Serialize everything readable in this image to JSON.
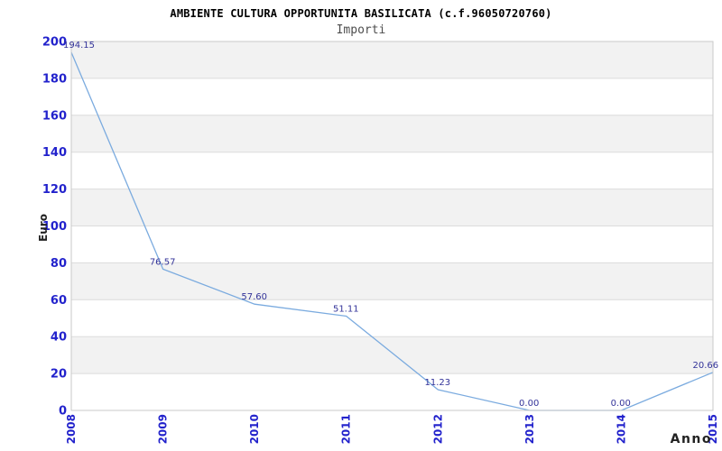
{
  "header": {
    "title": "AMBIENTE CULTURA OPPORTUNITA BASILICATA (c.f.96050720760)",
    "subtitle": "Importi"
  },
  "chart_data": {
    "type": "line",
    "title": "AMBIENTE CULTURA OPPORTUNITA BASILICATA (c.f.96050720760)",
    "subtitle": "Importi",
    "categories": [
      "2008",
      "2009",
      "2010",
      "2011",
      "2012",
      "2013",
      "2014",
      "2015"
    ],
    "values": [
      194.15,
      76.57,
      57.6,
      51.11,
      11.23,
      0,
      0,
      20.66
    ],
    "point_labels": [
      "194.15",
      "76.57",
      "57.60",
      "51.11",
      "11.23",
      "0.00",
      "0.00",
      "20.66"
    ],
    "xlabel": "Anno",
    "ylabel": "Euro",
    "ylim": [
      0,
      200
    ],
    "ytick_step": 20,
    "ytick_labels": [
      "0",
      "20",
      "40",
      "60",
      "80",
      "100",
      "120",
      "140",
      "160",
      "180",
      "200"
    ],
    "grid": "horizontal-only",
    "bands": "alternating gray/white, 20-unit tall, gray at top",
    "legend": "none",
    "x_labels_rotated": "90deg, read bottom-to-top"
  },
  "colors": {
    "background": "#ffffff",
    "line": "#7babdf",
    "tick_label": "#2222cc",
    "point_label": "#333399",
    "band": "#f2f2f2",
    "grid": "#dcdcdc",
    "border": "#c9c9c9",
    "axis_title": "#222222",
    "title": "#000000",
    "subtitle": "#4d4d4d"
  }
}
